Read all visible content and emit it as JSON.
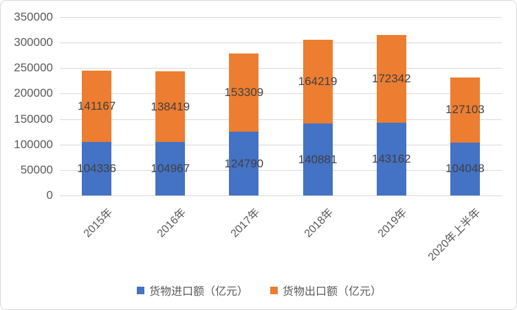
{
  "chart_data": {
    "type": "bar",
    "stacked": true,
    "title": "",
    "categories": [
      "2015年",
      "2016年",
      "2017年",
      "2018年",
      "2019年",
      "2020年上半年"
    ],
    "series": [
      {
        "name": "货物进口额（亿元）",
        "color": "#4472C4",
        "values": [
          104336,
          104967,
          124790,
          140881,
          143162,
          104048
        ]
      },
      {
        "name": "货物出口额（亿元）",
        "color": "#ED7D31",
        "values": [
          141167,
          138419,
          153309,
          164219,
          172342,
          127103
        ]
      }
    ],
    "ylim": [
      0,
      350000
    ],
    "ytick_step": 50000,
    "yticks": [
      "0",
      "50000",
      "100000",
      "150000",
      "200000",
      "250000",
      "300000",
      "350000"
    ],
    "grid": true,
    "legend_position": "bottom",
    "data_labels": true
  },
  "styles": {
    "background": "#FFFFFF",
    "border_color": "#D9D9D9",
    "grid_color": "#D9D9D9",
    "axis_tick_color": "#595959",
    "data_label_color": "#404040",
    "legend_text_color": "#595959"
  }
}
